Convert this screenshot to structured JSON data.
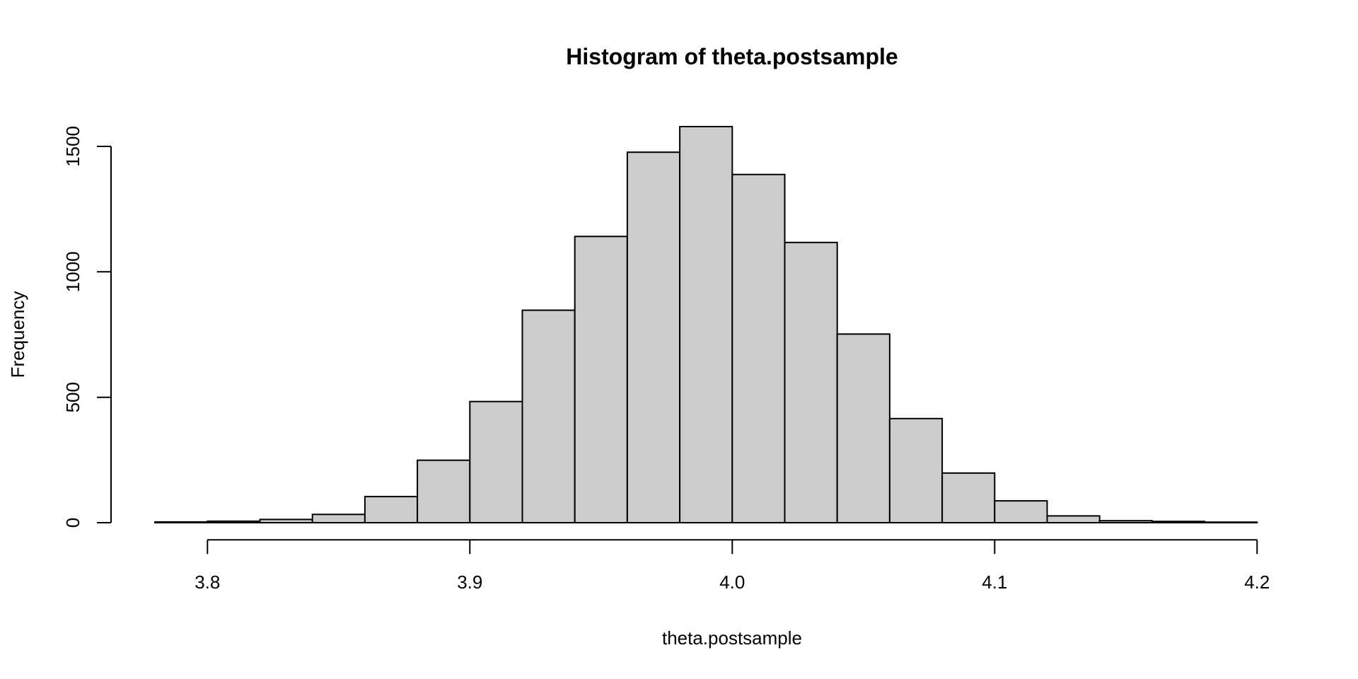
{
  "title": "Histogram of theta.postsample",
  "chart_data": {
    "type": "bar",
    "subtype": "histogram",
    "title": "Histogram of theta.postsample",
    "xlabel": "theta.postsample",
    "ylabel": "Frequency",
    "bin_start": 3.78,
    "bin_width": 0.02,
    "bin_edges": [
      3.78,
      3.8,
      3.82,
      3.84,
      3.86,
      3.88,
      3.9,
      3.92,
      3.94,
      3.96,
      3.98,
      4.0,
      4.02,
      4.04,
      4.06,
      4.08,
      4.1,
      4.12,
      4.14,
      4.16,
      4.18,
      4.2
    ],
    "counts": [
      3,
      6,
      13,
      33,
      104,
      249,
      483,
      847,
      1141,
      1477,
      1579,
      1388,
      1117,
      752,
      415,
      198,
      87,
      27,
      8,
      5,
      2
    ],
    "x_ticks": [
      3.8,
      3.9,
      4.0,
      4.1,
      4.2
    ],
    "x_tick_labels": [
      "3.8",
      "3.9",
      "4.0",
      "4.1",
      "4.2"
    ],
    "y_ticks": [
      0,
      500,
      1000,
      1500
    ],
    "y_tick_labels": [
      "0",
      "500",
      "1000",
      "1500"
    ],
    "xlim": [
      3.78,
      4.2
    ],
    "ylim": [
      0,
      1580
    ],
    "grid": false,
    "legend": "none",
    "bar_fill": "#CCCCCC",
    "bar_stroke": "#000000",
    "axis_color": "#000000",
    "background": "#FFFFFF"
  }
}
